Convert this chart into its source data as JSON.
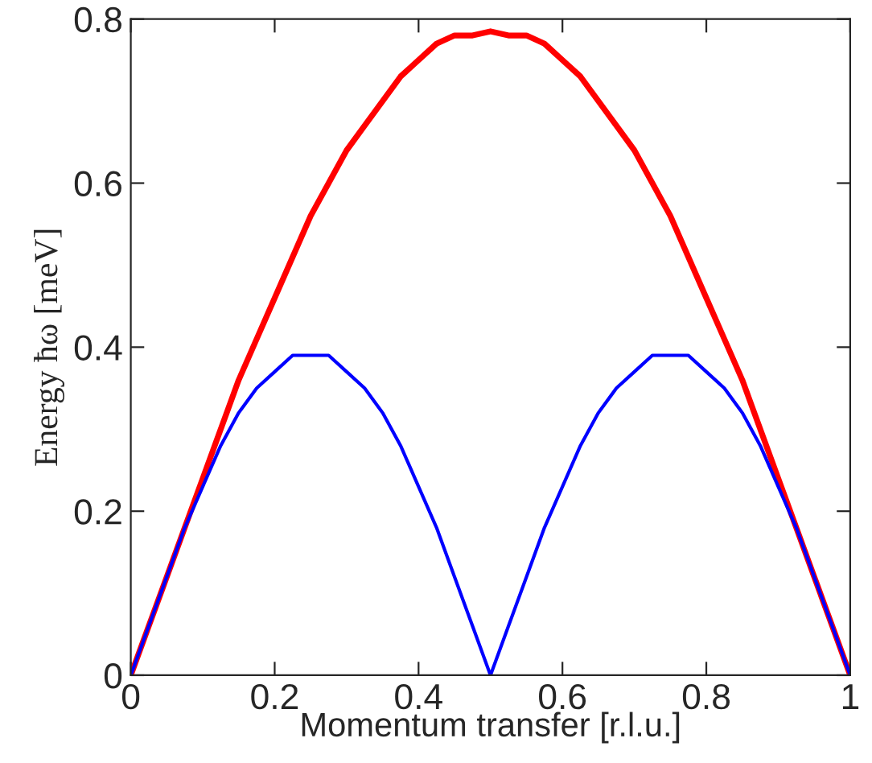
{
  "chart_data": {
    "type": "line",
    "xlabel": "Momentum transfer [r.l.u.]",
    "ylabel": "Energy ħω [meV]",
    "x": [
      0,
      0.025,
      0.05,
      0.075,
      0.1,
      0.125,
      0.15,
      0.175,
      0.2,
      0.225,
      0.25,
      0.275,
      0.3,
      0.325,
      0.35,
      0.375,
      0.4,
      0.425,
      0.45,
      0.475,
      0.5,
      0.525,
      0.55,
      0.575,
      0.6,
      0.625,
      0.65,
      0.675,
      0.7,
      0.725,
      0.75,
      0.775,
      0.8,
      0.825,
      0.85,
      0.875,
      0.9,
      0.925,
      0.95,
      0.975,
      1
    ],
    "series": [
      {
        "color": "#ff0000",
        "values": [
          0,
          0.06,
          0.12,
          0.18,
          0.24,
          0.3,
          0.36,
          0.41,
          0.46,
          0.51,
          0.56,
          0.6,
          0.64,
          0.67,
          0.7,
          0.73,
          0.75,
          0.77,
          0.78,
          0.78,
          0.785,
          0.78,
          0.78,
          0.77,
          0.75,
          0.73,
          0.7,
          0.67,
          0.64,
          0.6,
          0.56,
          0.51,
          0.46,
          0.41,
          0.36,
          0.3,
          0.24,
          0.18,
          0.12,
          0.06,
          0
        ]
      },
      {
        "color": "#0000ff",
        "values": [
          0,
          0.06,
          0.12,
          0.18,
          0.23,
          0.28,
          0.32,
          0.35,
          0.37,
          0.39,
          0.39,
          0.39,
          0.37,
          0.35,
          0.32,
          0.28,
          0.23,
          0.18,
          0.12,
          0.06,
          0,
          0.06,
          0.12,
          0.18,
          0.23,
          0.28,
          0.32,
          0.35,
          0.37,
          0.39,
          0.39,
          0.39,
          0.37,
          0.35,
          0.32,
          0.28,
          0.23,
          0.18,
          0.12,
          0.06,
          0
        ]
      }
    ],
    "xlim": [
      0,
      1
    ],
    "ylim": [
      0,
      0.8
    ],
    "xticks": [
      0,
      0.2,
      0.4,
      0.6,
      0.8,
      1
    ],
    "yticks": [
      0,
      0.2,
      0.4,
      0.6,
      0.8
    ],
    "grid": false,
    "legend": false,
    "marker": "none",
    "line_style": "solid"
  }
}
